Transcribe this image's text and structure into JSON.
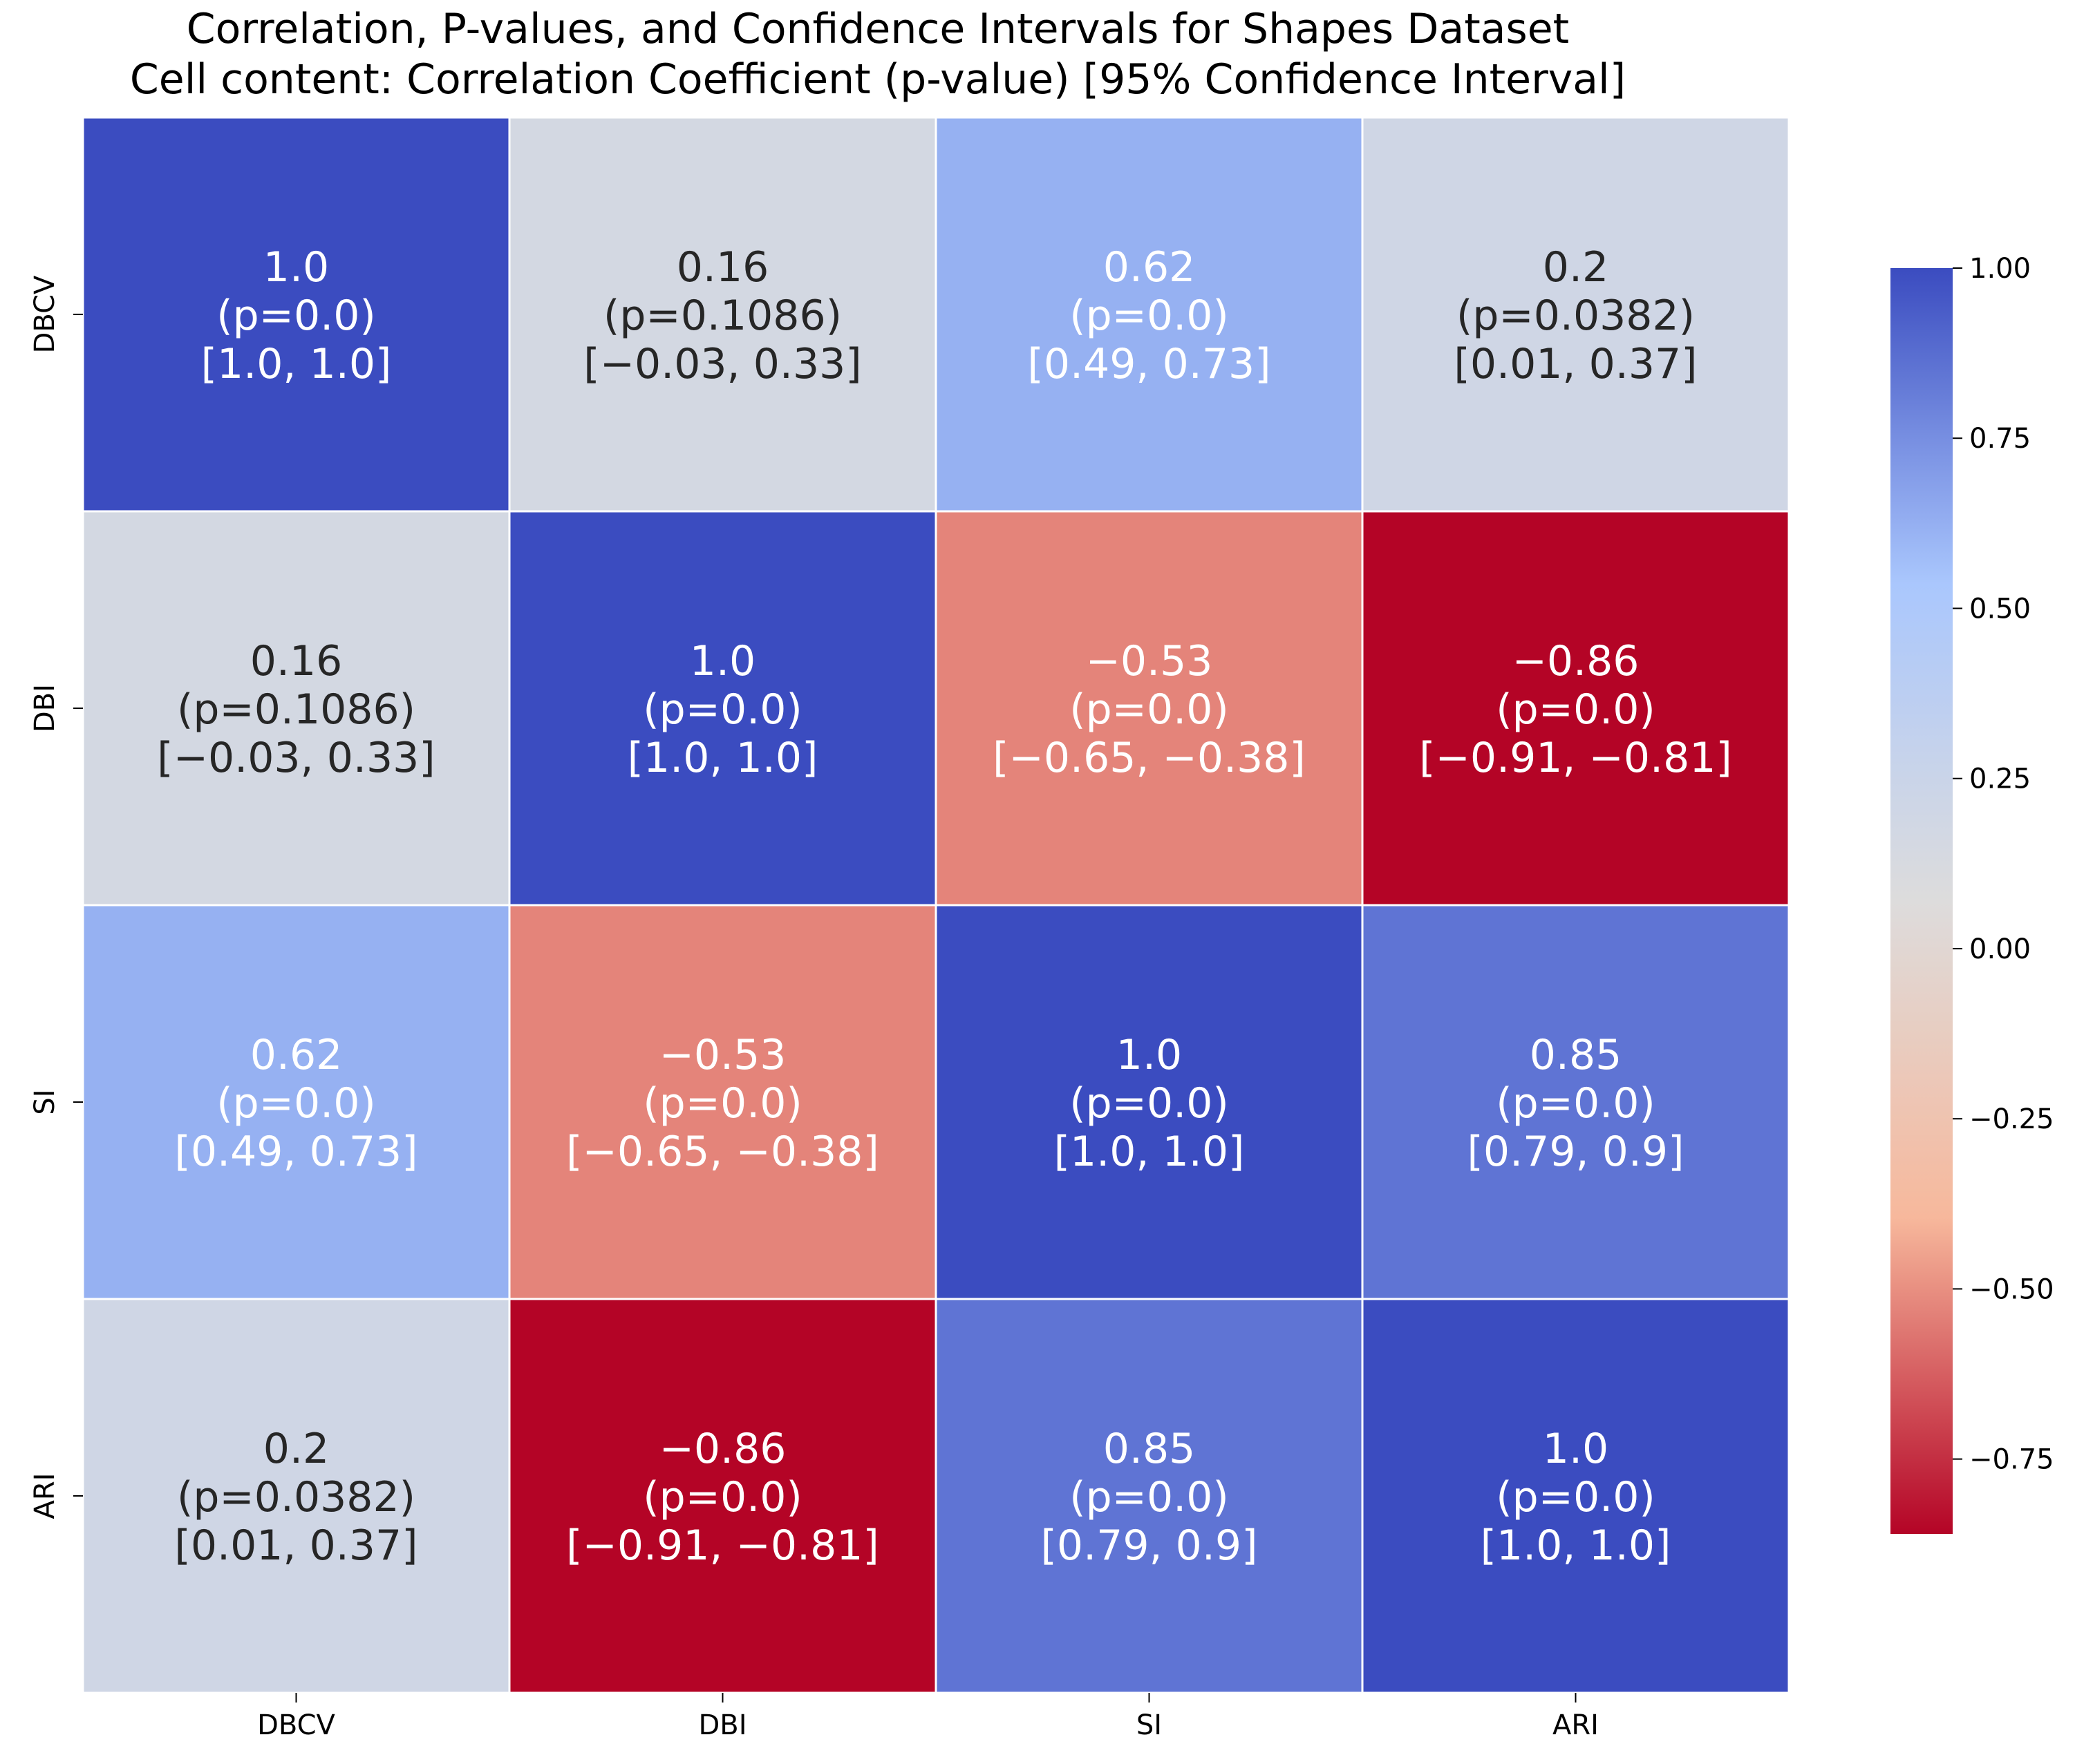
{
  "chart_data": {
    "type": "heatmap",
    "title_lines": [
      "Correlation, P-values, and Confidence Intervals for Shapes Dataset",
      "Cell content: Correlation Coefficient (p-value) [95% Confidence Interval]"
    ],
    "row_labels": [
      "DBCV",
      "DBI",
      "SI",
      "ARI"
    ],
    "col_labels": [
      "DBCV",
      "DBI",
      "SI",
      "ARI"
    ],
    "cells": [
      [
        {
          "r": 1.0,
          "value_text": "1.0",
          "p_text": "(p=0.0)",
          "ci_text": "[1.0, 1.0]"
        },
        {
          "r": 0.16,
          "value_text": "0.16",
          "p_text": "(p=0.1086)",
          "ci_text": "[−0.03, 0.33]"
        },
        {
          "r": 0.62,
          "value_text": "0.62",
          "p_text": "(p=0.0)",
          "ci_text": "[0.49, 0.73]"
        },
        {
          "r": 0.2,
          "value_text": "0.2",
          "p_text": "(p=0.0382)",
          "ci_text": "[0.01, 0.37]"
        }
      ],
      [
        {
          "r": 0.16,
          "value_text": "0.16",
          "p_text": "(p=0.1086)",
          "ci_text": "[−0.03, 0.33]"
        },
        {
          "r": 1.0,
          "value_text": "1.0",
          "p_text": "(p=0.0)",
          "ci_text": "[1.0, 1.0]"
        },
        {
          "r": -0.53,
          "value_text": "−0.53",
          "p_text": "(p=0.0)",
          "ci_text": "[−0.65, −0.38]"
        },
        {
          "r": -0.86,
          "value_text": "−0.86",
          "p_text": "(p=0.0)",
          "ci_text": "[−0.91, −0.81]"
        }
      ],
      [
        {
          "r": 0.62,
          "value_text": "0.62",
          "p_text": "(p=0.0)",
          "ci_text": "[0.49, 0.73]"
        },
        {
          "r": -0.53,
          "value_text": "−0.53",
          "p_text": "(p=0.0)",
          "ci_text": "[−0.65, −0.38]"
        },
        {
          "r": 1.0,
          "value_text": "1.0",
          "p_text": "(p=0.0)",
          "ci_text": "[1.0, 1.0]"
        },
        {
          "r": 0.85,
          "value_text": "0.85",
          "p_text": "(p=0.0)",
          "ci_text": "[0.79, 0.9]"
        }
      ],
      [
        {
          "r": 0.2,
          "value_text": "0.2",
          "p_text": "(p=0.0382)",
          "ci_text": "[0.01, 0.37]"
        },
        {
          "r": -0.86,
          "value_text": "−0.86",
          "p_text": "(p=0.0)",
          "ci_text": "[−0.91, −0.81]"
        },
        {
          "r": 0.85,
          "value_text": "0.85",
          "p_text": "(p=0.0)",
          "ci_text": "[0.79, 0.9]"
        },
        {
          "r": 1.0,
          "value_text": "1.0",
          "p_text": "(p=0.0)",
          "ci_text": "[1.0, 1.0]"
        }
      ]
    ],
    "colorbar": {
      "range": [
        -0.86,
        1.0
      ],
      "ticks": [
        1.0,
        0.75,
        0.5,
        0.25,
        0.0,
        -0.25,
        -0.5,
        -0.75
      ],
      "tick_labels": [
        "1.00",
        "0.75",
        "0.50",
        "0.25",
        "0.00",
        "−0.25",
        "−0.50",
        "−0.75"
      ]
    },
    "colormap": "coolwarm_r",
    "colormap_stops": [
      "#b40426",
      "#f7b89c",
      "#dddcdc",
      "#aac7fd",
      "#3b4cc0"
    ]
  }
}
